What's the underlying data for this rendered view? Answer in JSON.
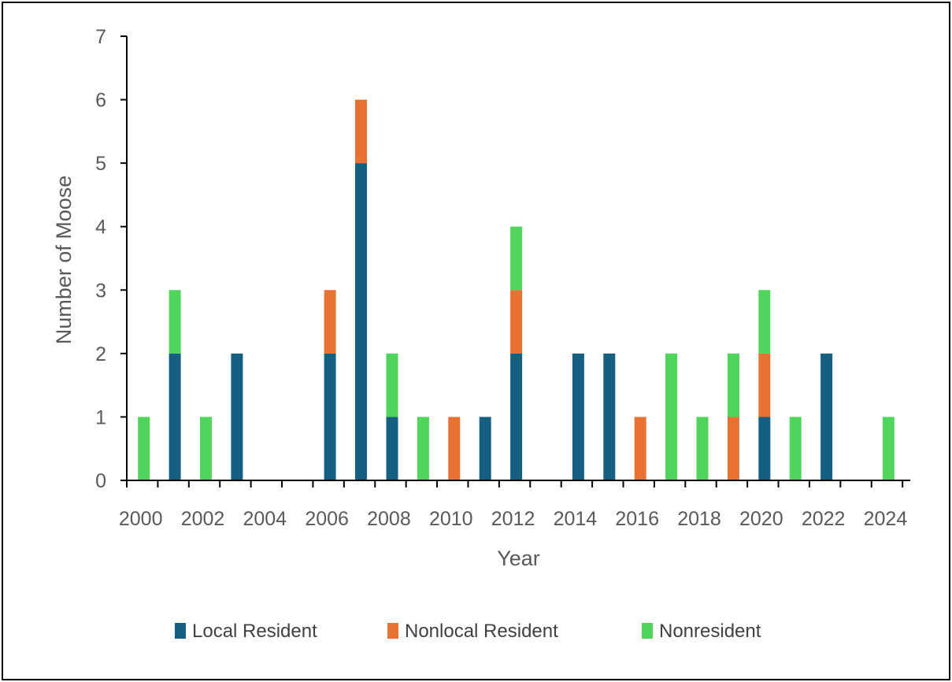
{
  "chart_data": {
    "type": "bar",
    "stacked": true,
    "xlabel": "Year",
    "ylabel": "Number of Moose",
    "ylim": [
      0,
      7
    ],
    "yticks": [
      0,
      1,
      2,
      3,
      4,
      5,
      6,
      7
    ],
    "xticks": [
      "2000",
      "2002",
      "2004",
      "2006",
      "2008",
      "2010",
      "2012",
      "2014",
      "2016",
      "2018",
      "2020",
      "2022",
      "2024"
    ],
    "grid": false,
    "legend_position": "bottom",
    "categories": [
      "2000",
      "2001",
      "2002",
      "2003",
      "2004",
      "2005",
      "2006",
      "2007",
      "2008",
      "2009",
      "2010",
      "2011",
      "2012",
      "2013",
      "2014",
      "2015",
      "2016",
      "2017",
      "2018",
      "2019",
      "2020",
      "2021",
      "2022",
      "2023",
      "2024"
    ],
    "series": [
      {
        "name": "Local Resident",
        "color": "#156082",
        "values": [
          0,
          2,
          0,
          2,
          0,
          0,
          2,
          5,
          1,
          0,
          0,
          1,
          2,
          0,
          2,
          2,
          0,
          0,
          0,
          0,
          1,
          0,
          2,
          0,
          0
        ]
      },
      {
        "name": "Nonlocal Resident",
        "color": "#E97132",
        "values": [
          0,
          0,
          0,
          0,
          0,
          0,
          1,
          1,
          0,
          0,
          1,
          0,
          1,
          0,
          0,
          0,
          1,
          0,
          0,
          1,
          1,
          0,
          0,
          0,
          0
        ]
      },
      {
        "name": "Nonresident",
        "color": "#4FD45C",
        "values": [
          1,
          1,
          1,
          0,
          0,
          0,
          0,
          0,
          1,
          1,
          0,
          0,
          1,
          0,
          0,
          0,
          0,
          2,
          1,
          1,
          1,
          1,
          0,
          0,
          1
        ]
      }
    ]
  }
}
